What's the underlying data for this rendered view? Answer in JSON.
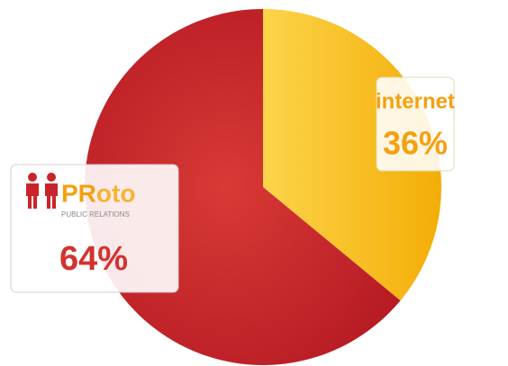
{
  "chart_data": {
    "type": "pie",
    "categories": [
      "internet",
      "PRoto"
    ],
    "values": [
      36,
      64
    ],
    "value_labels": [
      "36%",
      "64%"
    ],
    "colors": [
      "#f7b90f",
      "#c9242b"
    ],
    "brand_tagline": "PUBLIC RELATIONS"
  }
}
